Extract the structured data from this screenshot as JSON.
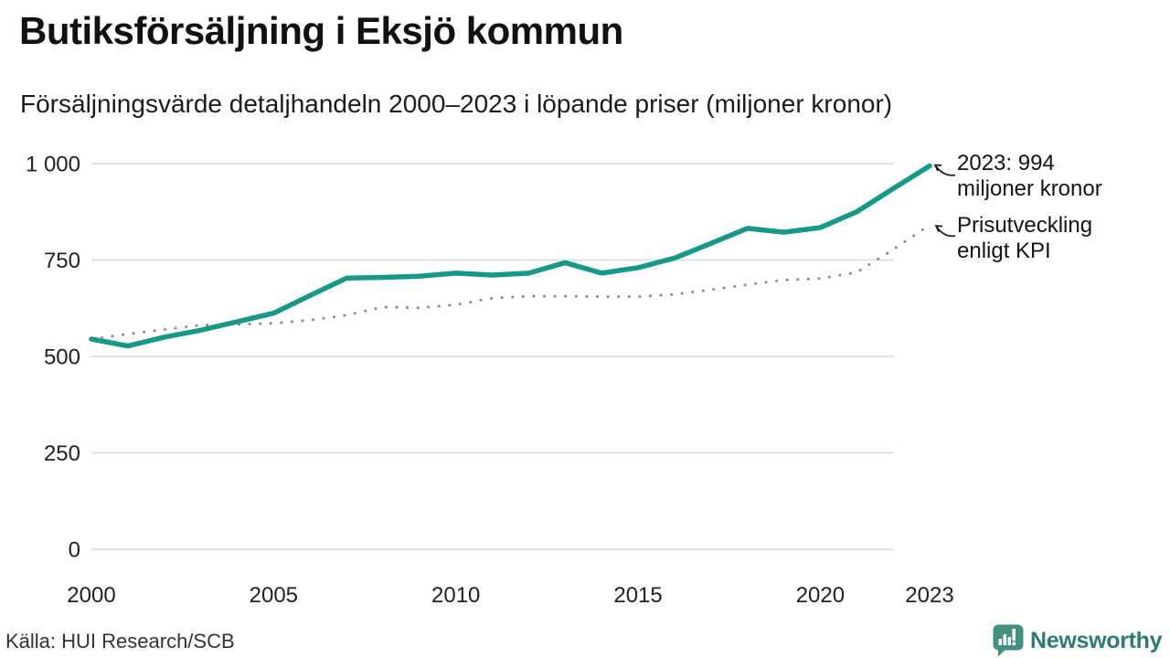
{
  "header": {
    "title": "Butiksförsäljning i Eksjö kommun",
    "subtitle": "Försäljningsvärde detaljhandeln 2000–2023 i löpande priser (miljoner kronor)"
  },
  "chart_data": {
    "type": "line",
    "title": "Butiksförsäljning i Eksjö kommun",
    "subtitle": "Försäljningsvärde detaljhandeln 2000–2023 i löpande priser (miljoner kronor)",
    "unit": "miljoner kronor",
    "x": [
      2000,
      2001,
      2002,
      2003,
      2004,
      2005,
      2006,
      2007,
      2008,
      2009,
      2010,
      2011,
      2012,
      2013,
      2014,
      2015,
      2016,
      2017,
      2018,
      2019,
      2020,
      2021,
      2022,
      2023
    ],
    "series": [
      {
        "name": "Butiksförsäljning i löpande priser",
        "style": "solid",
        "color": "#17998a",
        "values": [
          545,
          527,
          550,
          568,
          590,
          612,
          658,
          703,
          705,
          708,
          716,
          711,
          716,
          743,
          716,
          730,
          755,
          793,
          832,
          822,
          834,
          875,
          935,
          994
        ]
      },
      {
        "name": "Prisutveckling enligt KPI",
        "style": "dotted",
        "color": "#8a8a8a",
        "values": [
          545,
          558,
          570,
          581,
          583,
          586,
          594,
          607,
          628,
          626,
          634,
          651,
          656,
          656,
          655,
          655,
          661,
          673,
          686,
          698,
          702,
          718,
          777,
          841
        ]
      }
    ],
    "ylim": [
      0,
      1000
    ],
    "yticks": [
      0,
      250,
      500,
      750,
      1000
    ],
    "ytick_labels": [
      "0",
      "250",
      "500",
      "750",
      "1 000"
    ],
    "xticks": [
      2000,
      2005,
      2010,
      2015,
      2020,
      2023
    ],
    "grid": "horizontal",
    "legend_position": "end-of-line annotations",
    "last_point_label": "2023: 994 miljoner kronor"
  },
  "annotations": {
    "sales": {
      "lines": [
        "2023: 994",
        "miljoner kronor"
      ]
    },
    "kpi": {
      "lines": [
        "Prisutveckling",
        "enligt KPI"
      ]
    }
  },
  "footer": {
    "source": "Källa: HUI Research/SCB",
    "brand": "Newsworthy"
  },
  "colors": {
    "sales_line": "#17998a",
    "kpi_dots": "#8a8a8a",
    "gridline": "#e2e2e2",
    "text": "#1a1a1a",
    "arrow": "#1a1a1a",
    "brand_icon": "#41917e",
    "brand_text": "#2d7c6f"
  }
}
